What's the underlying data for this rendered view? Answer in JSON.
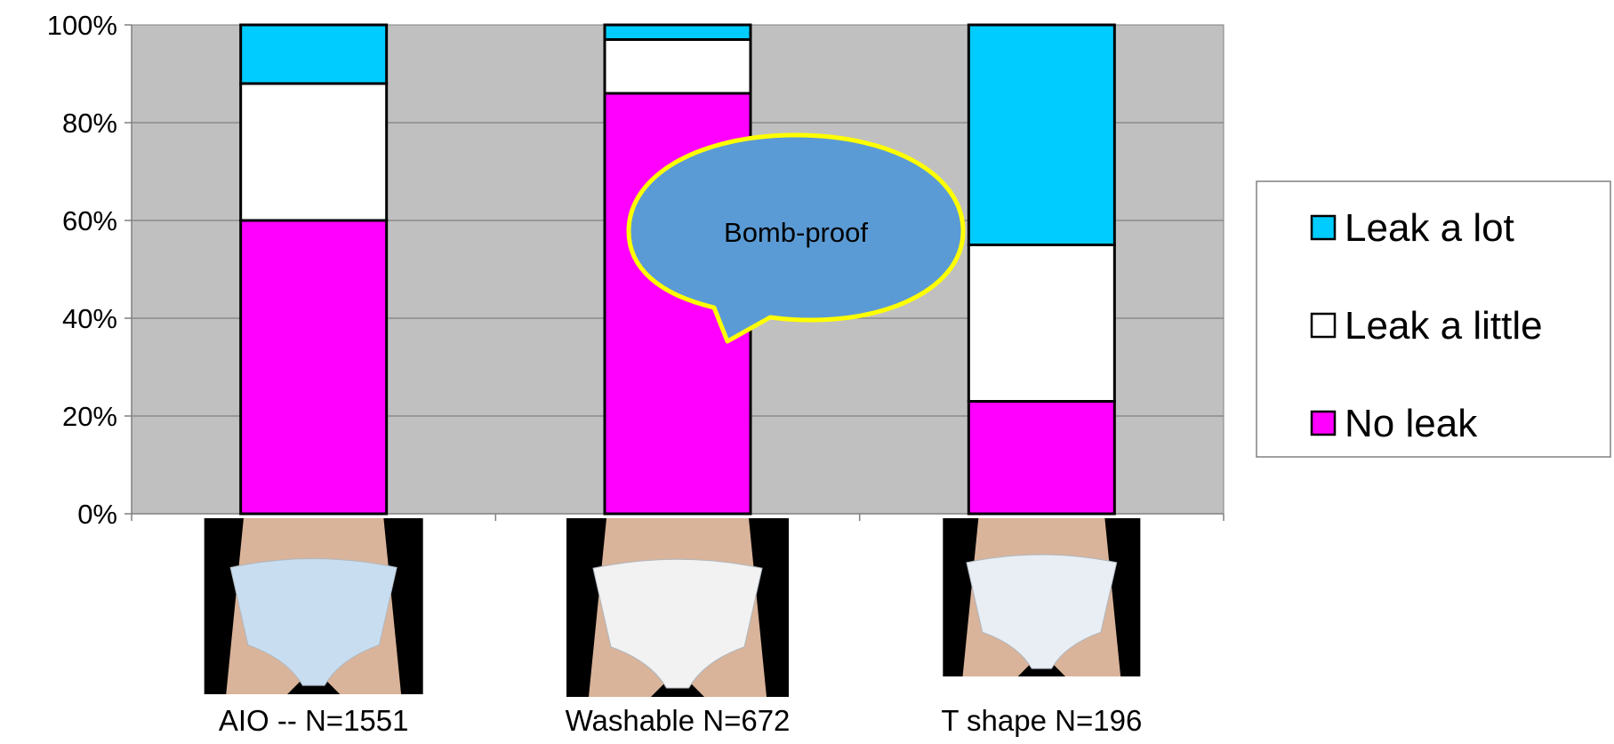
{
  "chart_data": {
    "type": "bar",
    "stacked": true,
    "normalized_percent": true,
    "categories": [
      "AIO -- N=1551",
      "Washable N=672",
      "T shape N=196"
    ],
    "series": [
      {
        "name": "No leak",
        "values": [
          60,
          86,
          23
        ],
        "color": "#FF00FF"
      },
      {
        "name": "Leak a little",
        "values": [
          28,
          11,
          32
        ],
        "color": "#FFFFFF"
      },
      {
        "name": "Leak a lot",
        "values": [
          12,
          3,
          45
        ],
        "color": "#00CCFF"
      }
    ],
    "legend_order": [
      "Leak a lot",
      "Leak a little",
      "No leak"
    ],
    "ylim": [
      0,
      100
    ],
    "yticks": [
      "0%",
      "20%",
      "40%",
      "60%",
      "80%",
      "100%"
    ],
    "grid": true,
    "plot_background": "#C0C0C0",
    "legend_position": "right",
    "title": "",
    "xlabel": "",
    "ylabel": "",
    "annotation": {
      "text": "Bomb-proof",
      "fill": "#5B9BD5",
      "stroke": "#FFFF00"
    },
    "category_images": [
      "diaper-photo-aio",
      "diaper-photo-washable",
      "diaper-photo-t-shape"
    ]
  }
}
